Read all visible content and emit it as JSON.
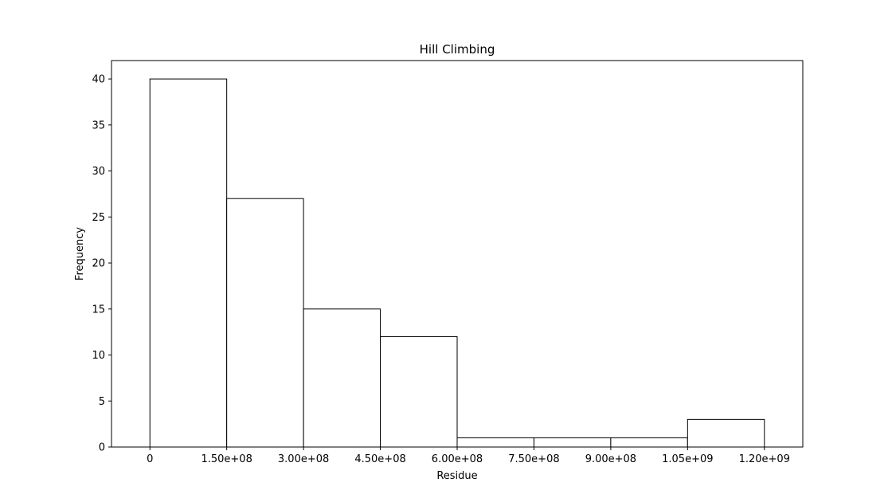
{
  "chart_data": {
    "type": "bar",
    "title": "Hill Climbing",
    "xlabel": "Residue",
    "ylabel": "Frequency",
    "bin_edges": [
      0,
      150000000,
      300000000,
      450000000,
      600000000,
      750000000,
      900000000,
      1050000000,
      1200000000
    ],
    "values": [
      40,
      27,
      15,
      12,
      1,
      1,
      1,
      3
    ],
    "xlim": [
      -75000000,
      1275000000
    ],
    "ylim": [
      0,
      42
    ],
    "x_ticks": [
      0,
      150000000,
      300000000,
      450000000,
      600000000,
      750000000,
      900000000,
      1050000000,
      1200000000
    ],
    "x_tick_labels": [
      "0",
      "1.50e+08",
      "3.00e+08",
      "4.50e+08",
      "6.00e+08",
      "7.50e+08",
      "9.00e+08",
      "1.05e+09",
      "1.20e+09"
    ],
    "y_ticks": [
      0,
      5,
      10,
      15,
      20,
      25,
      30,
      35,
      40
    ],
    "y_tick_labels": [
      "0",
      "5",
      "10",
      "15",
      "20",
      "25",
      "30",
      "35",
      "40"
    ],
    "grid": false,
    "bar_fill": "#ffffff",
    "bar_edge": "#000000"
  }
}
